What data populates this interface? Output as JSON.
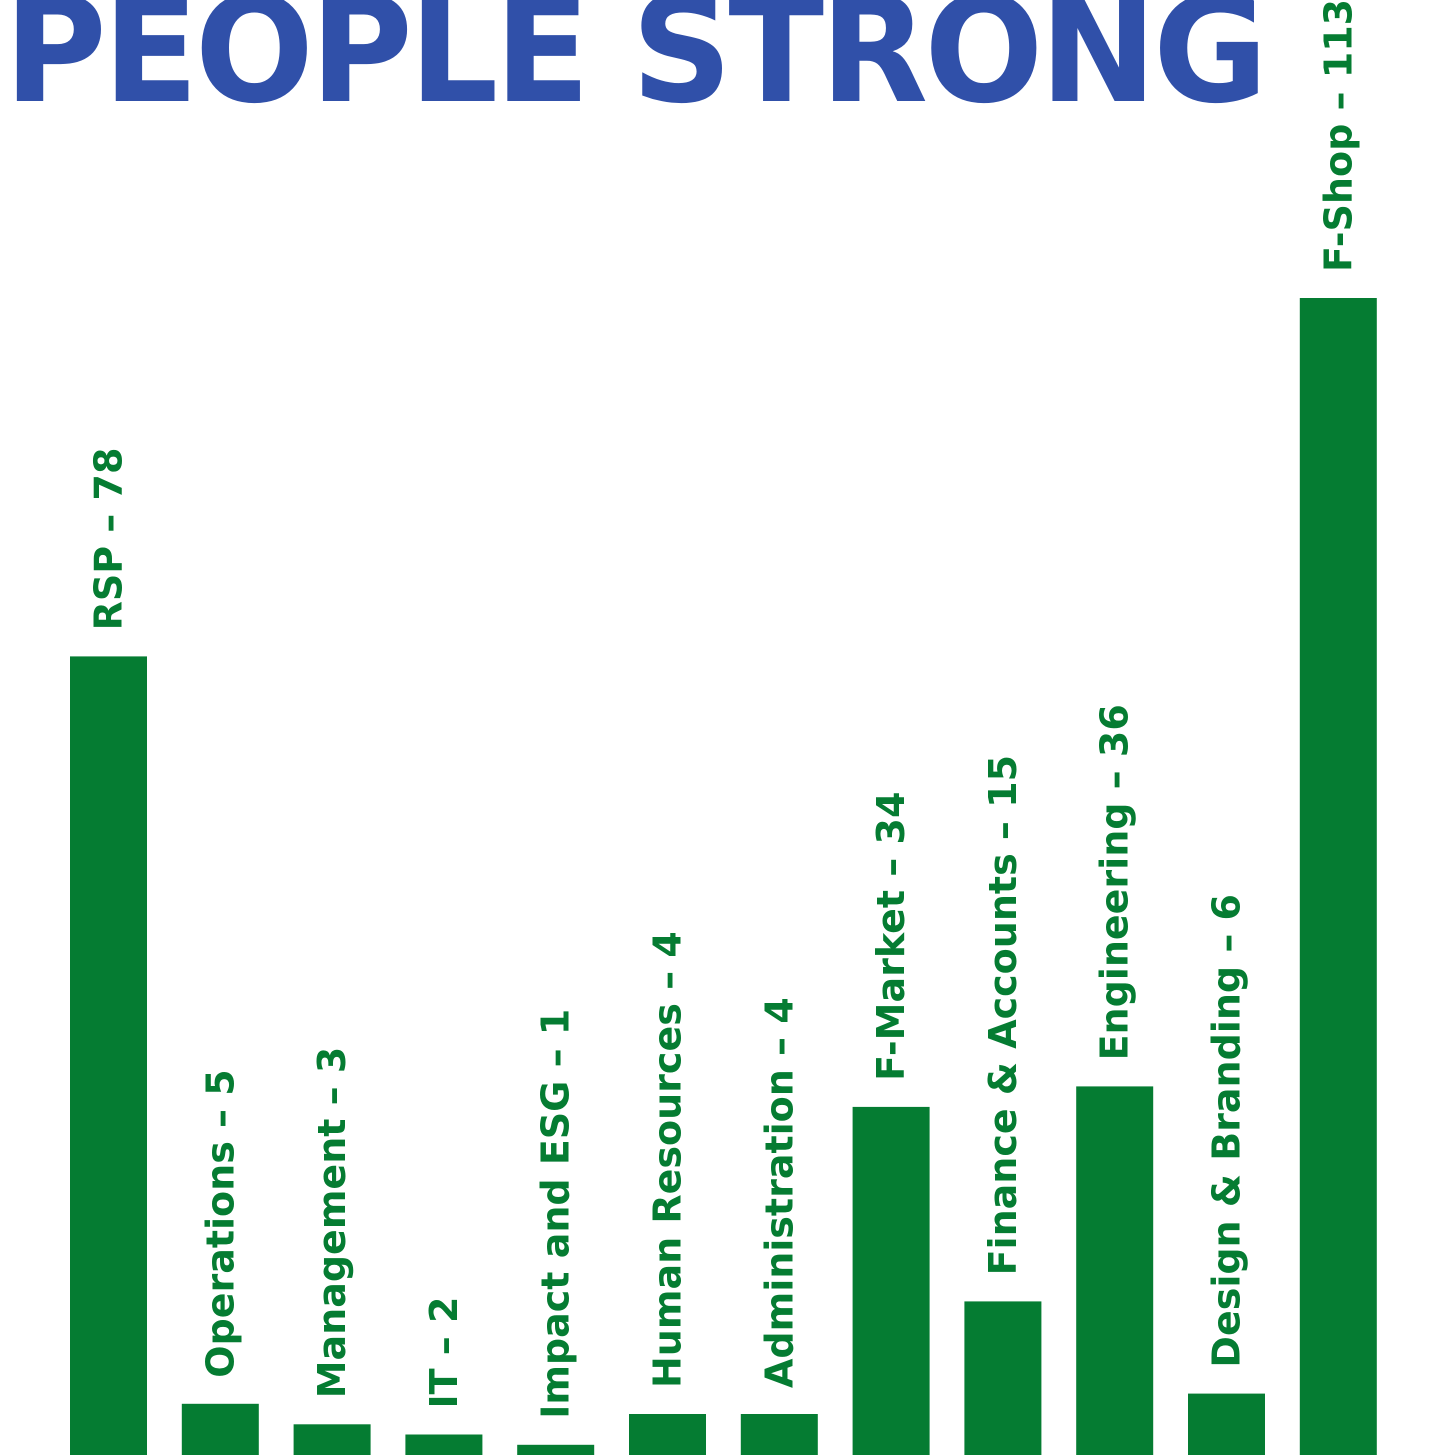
{
  "page_title": "PEOPLE STRONG",
  "colors": {
    "title": "#3050a9",
    "bar": "#057c32",
    "label": "#057c32",
    "background": "#ffffff"
  },
  "chart_data": {
    "type": "bar",
    "orientation": "vertical",
    "categories": [
      "RSP",
      "Operations",
      "Management",
      "IT",
      "Impact and ESG",
      "Human Resources",
      "Administration",
      "F-Market",
      "Finance & Accounts",
      "Engineering",
      "Design & Branding",
      "F-Shop"
    ],
    "values": [
      78,
      5,
      3,
      2,
      1,
      4,
      4,
      34,
      15,
      36,
      6,
      113
    ],
    "bar_labels": [
      "RSP – 78",
      "Operations – 5",
      "Management – 3",
      "IT – 2",
      "Impact and ESG – 1",
      "Human Resources – 4",
      "Administration – 4",
      "F-Market – 34",
      "Finance & Accounts – 15",
      "Engineering – 36",
      "Design & Branding – 6",
      "F-Shop – 113"
    ],
    "title": "PEOPLE STRONG",
    "xlabel": "",
    "ylabel": "",
    "ylim": [
      0,
      113
    ],
    "grid": false,
    "legend": "none",
    "label_orientation": "vertical, above bars"
  }
}
